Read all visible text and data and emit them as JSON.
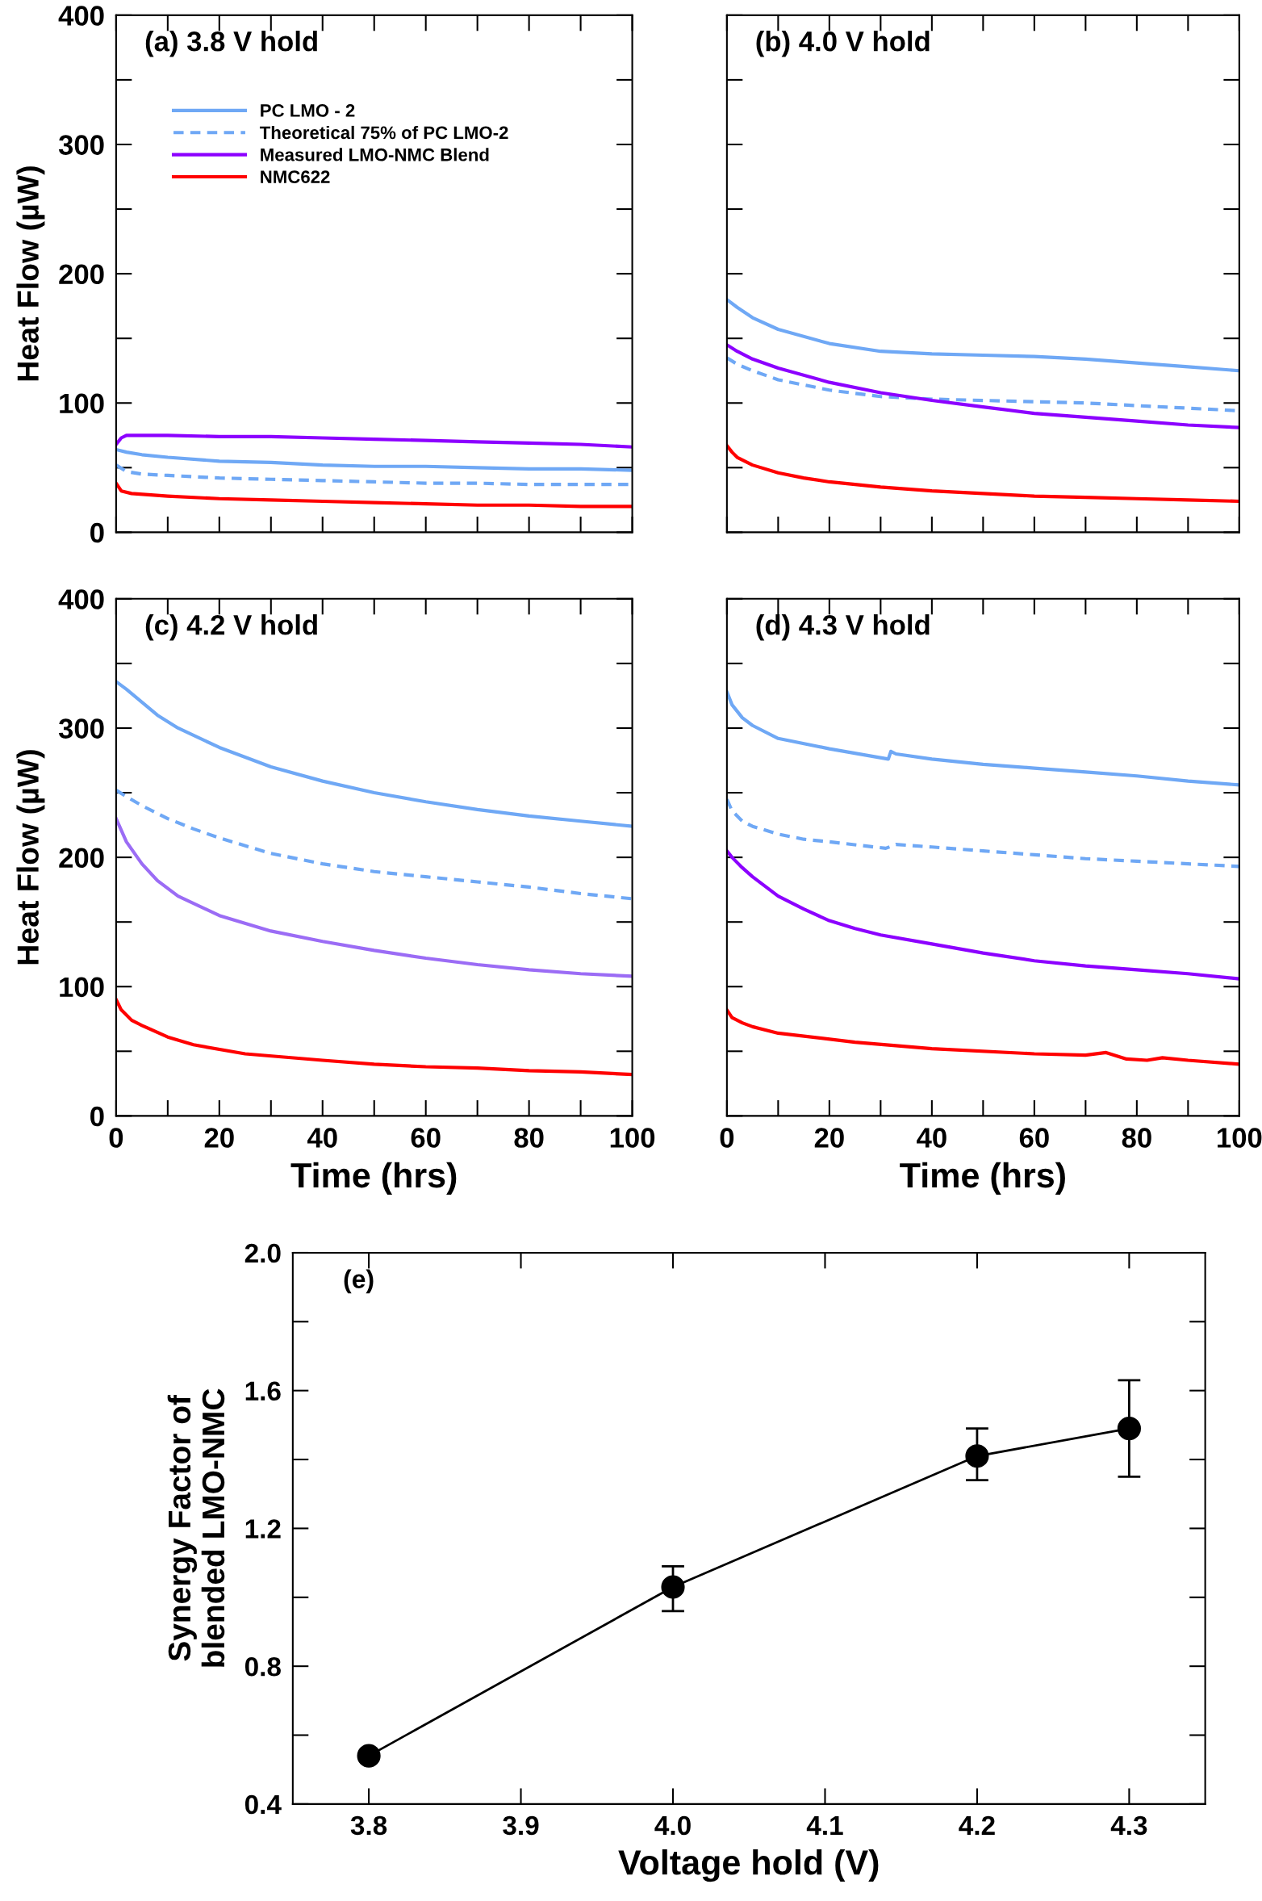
{
  "chart_data": [
    {
      "type": "line",
      "title": "(a) 3.8 V hold",
      "ylabel": "Heat Flow (µW)",
      "xlim": [
        0,
        100
      ],
      "ylim": [
        0,
        400
      ],
      "tick_labels": "y",
      "grid": false,
      "legend": "top left",
      "marker": "none",
      "xticks": [
        0,
        20,
        40,
        60,
        80,
        100
      ],
      "yticks": [
        0,
        100,
        200,
        300,
        400
      ],
      "series": [
        {
          "name": "PC LMO - 2",
          "color": "#6fa8f5",
          "line_style": "solid",
          "x": [
            0,
            2,
            5,
            10,
            20,
            30,
            40,
            50,
            60,
            70,
            80,
            90,
            100
          ],
          "values": [
            64,
            62,
            60,
            58,
            55,
            54,
            52,
            51,
            51,
            50,
            49,
            49,
            48
          ]
        },
        {
          "name": "Theoretical 75% of PC LMO-2",
          "color": "#6fa8f5",
          "line_style": "dashed",
          "x": [
            0,
            2,
            5,
            10,
            20,
            30,
            40,
            50,
            60,
            70,
            80,
            90,
            100
          ],
          "values": [
            52,
            47,
            45,
            44,
            42,
            41,
            40,
            39,
            38,
            38,
            37,
            37,
            37
          ]
        },
        {
          "name": "Measured LMO-NMC Blend",
          "color": "#8c00ff",
          "line_style": "solid",
          "x": [
            0,
            1,
            2,
            10,
            20,
            30,
            40,
            50,
            60,
            70,
            80,
            90,
            100
          ],
          "values": [
            68,
            73,
            75,
            75,
            74,
            74,
            73,
            72,
            71,
            70,
            69,
            68,
            66
          ]
        },
        {
          "name": "NMC622",
          "color": "#ff0000",
          "line_style": "solid",
          "x": [
            0,
            1,
            3,
            10,
            20,
            30,
            40,
            50,
            60,
            70,
            80,
            90,
            100
          ],
          "values": [
            38,
            32,
            30,
            28,
            26,
            25,
            24,
            23,
            22,
            21,
            21,
            20,
            20
          ]
        }
      ]
    },
    {
      "type": "line",
      "title": "(b) 4.0 V hold",
      "xlim": [
        0,
        100
      ],
      "ylim": [
        0,
        400
      ],
      "tick_labels": false,
      "grid": false,
      "marker": "none",
      "xticks": [
        0,
        20,
        40,
        60,
        80,
        100
      ],
      "yticks": [
        0,
        100,
        200,
        300,
        400
      ],
      "series": [
        {
          "color": "#6fa8f5",
          "line_style": "solid",
          "x": [
            0,
            2,
            5,
            10,
            20,
            30,
            40,
            50,
            60,
            70,
            80,
            90,
            100
          ],
          "values": [
            180,
            174,
            166,
            157,
            146,
            140,
            138,
            137,
            136,
            134,
            131,
            128,
            125
          ]
        },
        {
          "color": "#6fa8f5",
          "line_style": "dashed",
          "x": [
            0,
            2,
            5,
            10,
            20,
            30,
            40,
            50,
            60,
            70,
            80,
            90,
            100
          ],
          "values": [
            135,
            130,
            125,
            118,
            110,
            105,
            103,
            102,
            101,
            100,
            98,
            96,
            94
          ]
        },
        {
          "color": "#8c00ff",
          "line_style": "solid",
          "x": [
            0,
            2,
            5,
            10,
            20,
            30,
            40,
            50,
            60,
            70,
            80,
            90,
            100
          ],
          "values": [
            145,
            140,
            134,
            127,
            116,
            108,
            102,
            97,
            92,
            89,
            86,
            83,
            81
          ]
        },
        {
          "color": "#ff0000",
          "line_style": "solid",
          "x": [
            0,
            1,
            2,
            5,
            10,
            15,
            20,
            30,
            40,
            50,
            60,
            70,
            80,
            90,
            100
          ],
          "values": [
            67,
            62,
            58,
            52,
            46,
            42,
            39,
            35,
            32,
            30,
            28,
            27,
            26,
            25,
            24
          ]
        }
      ]
    },
    {
      "type": "line",
      "title": "(c) 4.2 V hold",
      "xlabel": "Time (hrs)",
      "ylabel": "Heat Flow (µW)",
      "xlim": [
        0,
        100
      ],
      "ylim": [
        0,
        400
      ],
      "grid": false,
      "marker": "none",
      "xticks": [
        0,
        20,
        40,
        60,
        80,
        100
      ],
      "yticks": [
        0,
        100,
        200,
        300,
        400
      ],
      "series": [
        {
          "color": "#6fa8f5",
          "line_style": "solid",
          "x": [
            0,
            2,
            5,
            8,
            12,
            20,
            30,
            40,
            50,
            60,
            70,
            80,
            90,
            100
          ],
          "values": [
            336,
            330,
            320,
            310,
            300,
            285,
            270,
            259,
            250,
            243,
            237,
            232,
            228,
            224
          ]
        },
        {
          "color": "#6fa8f5",
          "line_style": "dashed",
          "x": [
            0,
            2,
            5,
            10,
            15,
            20,
            30,
            40,
            50,
            60,
            70,
            80,
            90,
            100
          ],
          "values": [
            252,
            247,
            240,
            230,
            222,
            215,
            203,
            195,
            189,
            185,
            181,
            177,
            172,
            168
          ]
        },
        {
          "color": "#9b6cf5",
          "line_style": "solid",
          "x": [
            0,
            2,
            5,
            8,
            12,
            20,
            30,
            40,
            50,
            60,
            70,
            80,
            90,
            100
          ],
          "values": [
            230,
            212,
            195,
            182,
            170,
            155,
            143,
            135,
            128,
            122,
            117,
            113,
            110,
            108
          ]
        },
        {
          "color": "#ff0000",
          "line_style": "solid",
          "x": [
            0,
            1,
            3,
            5,
            10,
            15,
            25,
            40,
            50,
            60,
            70,
            80,
            90,
            100
          ],
          "values": [
            90,
            82,
            74,
            70,
            61,
            55,
            48,
            43,
            40,
            38,
            37,
            35,
            34,
            32
          ]
        }
      ]
    },
    {
      "type": "line",
      "title": "(d) 4.3 V hold",
      "xlabel": "Time (hrs)",
      "xlim": [
        0,
        100
      ],
      "ylim": [
        0,
        400
      ],
      "tick_labels": "x",
      "grid": false,
      "marker": "none",
      "xticks": [
        0,
        20,
        40,
        60,
        80,
        100
      ],
      "yticks": [
        0,
        100,
        200,
        300,
        400
      ],
      "series": [
        {
          "color": "#6fa8f5",
          "line_style": "solid",
          "x": [
            0,
            1,
            3,
            5,
            10,
            20,
            31.5,
            32,
            33,
            40,
            50,
            60,
            70,
            80,
            90,
            100
          ],
          "values": [
            328,
            318,
            308,
            302,
            292,
            284,
            276,
            282,
            280,
            276,
            272,
            269,
            266,
            263,
            259,
            256
          ]
        },
        {
          "color": "#6fa8f5",
          "line_style": "dashed",
          "x": [
            0,
            1,
            3,
            5,
            10,
            15,
            20,
            31,
            33,
            40,
            50,
            60,
            70,
            80,
            90,
            100
          ],
          "values": [
            245,
            236,
            228,
            224,
            218,
            214,
            212,
            207,
            210,
            208,
            205,
            202,
            199,
            197,
            195,
            193
          ]
        },
        {
          "color": "#8c00ff",
          "line_style": "solid",
          "x": [
            0,
            1,
            3,
            5,
            10,
            15,
            20,
            25,
            30,
            40,
            50,
            60,
            70,
            80,
            90,
            100
          ],
          "values": [
            205,
            200,
            192,
            185,
            170,
            160,
            151,
            145,
            140,
            133,
            126,
            120,
            116,
            113,
            110,
            106
          ]
        },
        {
          "color": "#ff0000",
          "line_style": "solid",
          "x": [
            0,
            1,
            3,
            5,
            10,
            25,
            40,
            60,
            70,
            74,
            78,
            82,
            85,
            90,
            100
          ],
          "values": [
            82,
            76,
            72,
            69,
            64,
            57,
            52,
            48,
            47,
            49,
            44,
            43,
            45,
            43,
            40
          ]
        }
      ]
    },
    {
      "type": "line",
      "title": "(e)",
      "xlabel": "Voltage hold (V)",
      "ylabel": "Synergy Factor of\nblended LMO-NMC",
      "xlim": [
        3.75,
        4.35
      ],
      "ylim": [
        0.4,
        2.0
      ],
      "grid": false,
      "marker": "circle",
      "xticks": [
        3.8,
        3.9,
        {
          "value": 4.0,
          "label": "4.0"
        },
        4.1,
        4.2,
        4.3
      ],
      "yticks": [
        0.4,
        0.8,
        1.2,
        1.6,
        {
          "value": 2.0,
          "label": "2.0"
        }
      ],
      "series": [
        {
          "color": "#000000",
          "line_style": "solid",
          "x": [
            3.8,
            4.0,
            4.2,
            4.3
          ],
          "values": [
            0.54,
            1.03,
            1.41,
            1.49
          ],
          "errors": [
            null,
            [
              0.96,
              1.09
            ],
            [
              1.34,
              1.49
            ],
            [
              1.35,
              1.63
            ]
          ]
        }
      ]
    }
  ]
}
